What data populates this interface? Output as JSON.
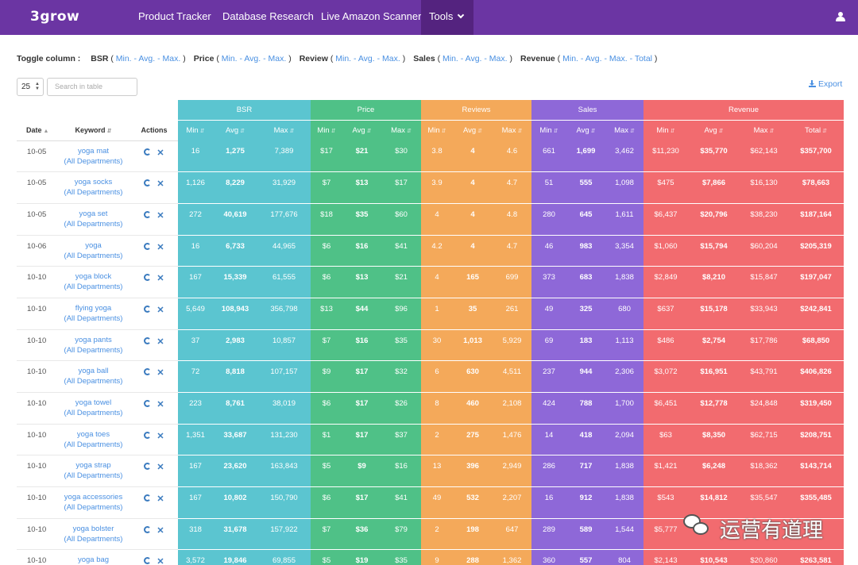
{
  "nav": {
    "logo": "3grow",
    "links": [
      "Product Tracker",
      "Database Research",
      "Live Amazon Scanner"
    ],
    "tools_label": "Tools",
    "user_icon": "user-icon"
  },
  "toggle": {
    "label": "Toggle column :",
    "groups": [
      {
        "name": "BSR",
        "options": [
          "Min.",
          "Avg.",
          "Max."
        ]
      },
      {
        "name": "Price",
        "options": [
          "Min.",
          "Avg.",
          "Max."
        ]
      },
      {
        "name": "Review",
        "options": [
          "Min.",
          "Avg.",
          "Max."
        ]
      },
      {
        "name": "Sales",
        "options": [
          "Min.",
          "Avg.",
          "Max."
        ]
      },
      {
        "name": "Revenue",
        "options": [
          "Min.",
          "Avg.",
          "Max.",
          "Total"
        ]
      }
    ]
  },
  "controls": {
    "page_size": "25",
    "search_placeholder": "Search in table",
    "export_label": "Export"
  },
  "table": {
    "fixed_headers": [
      "Date",
      "Keyword",
      "Actions"
    ],
    "groups": [
      {
        "label": "BSR",
        "color": "#5bc5d0",
        "subs": [
          "Min",
          "Avg",
          "Max"
        ]
      },
      {
        "label": "Price",
        "color": "#4fc187",
        "subs": [
          "Min",
          "Avg",
          "Max"
        ]
      },
      {
        "label": "Reviews",
        "color": "#f4a95a",
        "subs": [
          "Min",
          "Avg",
          "Max"
        ]
      },
      {
        "label": "Sales",
        "color": "#8e68d8",
        "subs": [
          "Min",
          "Avg",
          "Max"
        ]
      },
      {
        "label": "Revenue",
        "color": "#f26b6f",
        "subs": [
          "Min",
          "Avg",
          "Max",
          "Total"
        ]
      }
    ],
    "department": "(All Departments)",
    "rows": [
      {
        "date": "10-05",
        "keyword": "yoga mat",
        "vals": [
          "16",
          "1,275",
          "7,389",
          "$17",
          "$21",
          "$30",
          "3.8",
          "4",
          "4.6",
          "661",
          "1,699",
          "3,462",
          "$11,230",
          "$35,770",
          "$62,143",
          "$357,700"
        ]
      },
      {
        "date": "10-05",
        "keyword": "yoga socks",
        "vals": [
          "1,126",
          "8,229",
          "31,929",
          "$7",
          "$13",
          "$17",
          "3.9",
          "4",
          "4.7",
          "51",
          "555",
          "1,098",
          "$475",
          "$7,866",
          "$16,130",
          "$78,663"
        ]
      },
      {
        "date": "10-05",
        "keyword": "yoga set",
        "vals": [
          "272",
          "40,619",
          "177,676",
          "$18",
          "$35",
          "$60",
          "4",
          "4",
          "4.8",
          "280",
          "645",
          "1,611",
          "$6,437",
          "$20,796",
          "$38,230",
          "$187,164"
        ]
      },
      {
        "date": "10-06",
        "keyword": "yoga",
        "vals": [
          "16",
          "6,733",
          "44,965",
          "$6",
          "$16",
          "$41",
          "4.2",
          "4",
          "4.7",
          "46",
          "983",
          "3,354",
          "$1,060",
          "$15,794",
          "$60,204",
          "$205,319"
        ]
      },
      {
        "date": "10-10",
        "keyword": "yoga block",
        "vals": [
          "167",
          "15,339",
          "61,555",
          "$6",
          "$13",
          "$21",
          "4",
          "165",
          "699",
          "373",
          "683",
          "1,838",
          "$2,849",
          "$8,210",
          "$15,847",
          "$197,047"
        ]
      },
      {
        "date": "10-10",
        "keyword": "flying yoga",
        "vals": [
          "5,649",
          "108,943",
          "356,798",
          "$13",
          "$44",
          "$96",
          "1",
          "35",
          "261",
          "49",
          "325",
          "680",
          "$637",
          "$15,178",
          "$33,943",
          "$242,841"
        ]
      },
      {
        "date": "10-10",
        "keyword": "yoga pants",
        "vals": [
          "37",
          "2,983",
          "10,857",
          "$7",
          "$16",
          "$35",
          "30",
          "1,013",
          "5,929",
          "69",
          "183",
          "1,113",
          "$486",
          "$2,754",
          "$17,786",
          "$68,850"
        ]
      },
      {
        "date": "10-10",
        "keyword": "yoga ball",
        "vals": [
          "72",
          "8,818",
          "107,157",
          "$9",
          "$17",
          "$32",
          "6",
          "630",
          "4,511",
          "237",
          "944",
          "2,306",
          "$3,072",
          "$16,951",
          "$43,791",
          "$406,826"
        ]
      },
      {
        "date": "10-10",
        "keyword": "yoga towel",
        "vals": [
          "223",
          "8,761",
          "38,019",
          "$6",
          "$17",
          "$26",
          "8",
          "460",
          "2,108",
          "424",
          "788",
          "1,700",
          "$6,451",
          "$12,778",
          "$24,848",
          "$319,450"
        ]
      },
      {
        "date": "10-10",
        "keyword": "yoga toes",
        "vals": [
          "1,351",
          "33,687",
          "131,230",
          "$1",
          "$17",
          "$37",
          "2",
          "275",
          "1,476",
          "14",
          "418",
          "2,094",
          "$63",
          "$8,350",
          "$62,715",
          "$208,751"
        ]
      },
      {
        "date": "10-10",
        "keyword": "yoga strap",
        "vals": [
          "167",
          "23,620",
          "163,843",
          "$5",
          "$9",
          "$16",
          "13",
          "396",
          "2,949",
          "286",
          "717",
          "1,838",
          "$1,421",
          "$6,248",
          "$18,362",
          "$143,714"
        ]
      },
      {
        "date": "10-10",
        "keyword": "yoga accessories",
        "vals": [
          "167",
          "10,802",
          "150,790",
          "$6",
          "$17",
          "$41",
          "49",
          "532",
          "2,207",
          "16",
          "912",
          "1,838",
          "$543",
          "$14,812",
          "$35,547",
          "$355,485"
        ]
      },
      {
        "date": "10-10",
        "keyword": "yoga bolster",
        "vals": [
          "318",
          "31,678",
          "157,922",
          "$7",
          "$36",
          "$79",
          "2",
          "198",
          "647",
          "289",
          "589",
          "1,544",
          "$5,777",
          "",
          "",
          ""
        ]
      },
      {
        "date": "10-10",
        "keyword": "yoga bag",
        "vals": [
          "3,572",
          "19,846",
          "69,855",
          "$5",
          "$19",
          "$35",
          "9",
          "288",
          "1,362",
          "360",
          "557",
          "804",
          "$2,143",
          "$10,543",
          "$20,860",
          "$263,581"
        ]
      }
    ]
  },
  "watermark": "运营有道理"
}
